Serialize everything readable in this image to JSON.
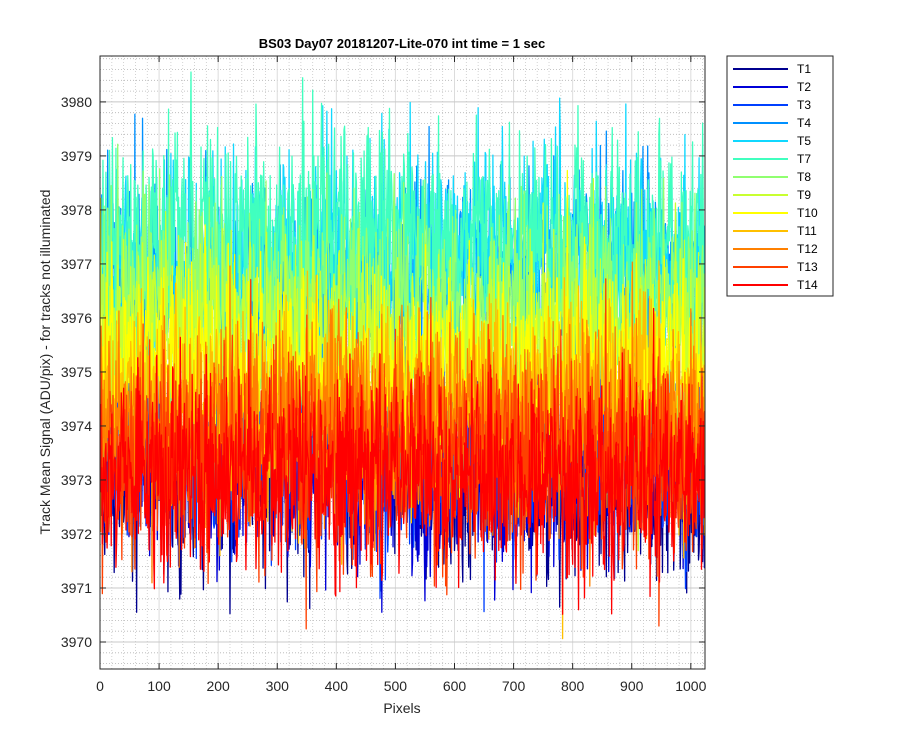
{
  "chart_data": {
    "type": "line",
    "title": "BS03 Day07 20181207-Lite-070 int time = 1 sec",
    "xlabel": "Pixels",
    "ylabel": "Track Mean Signal (ADU/pix) - for tracks not illuminated",
    "xlim": [
      0,
      1024
    ],
    "ylim": [
      3969.5,
      3980.85
    ],
    "x_ticks": [
      0,
      100,
      200,
      300,
      400,
      500,
      600,
      700,
      800,
      900,
      1000
    ],
    "y_ticks": [
      3970,
      3971,
      3972,
      3973,
      3974,
      3975,
      3976,
      3977,
      3978,
      3979,
      3980
    ],
    "grid": true,
    "legend_position": "outside-right",
    "series": [
      {
        "name": "T1",
        "color": "#00008f",
        "mean": 3973.0,
        "noise": 0.85
      },
      {
        "name": "T2",
        "color": "#0000d8",
        "mean": 3973.2,
        "noise": 0.85
      },
      {
        "name": "T3",
        "color": "#0040ff",
        "mean": 3973.5,
        "noise": 0.9
      },
      {
        "name": "T4",
        "color": "#0090ff",
        "mean": 3976.6,
        "noise": 1.0
      },
      {
        "name": "T5",
        "color": "#10d8ff",
        "mean": 3977.0,
        "noise": 1.0
      },
      {
        "name": "T7",
        "color": "#40ffbf",
        "mean": 3977.5,
        "noise": 1.0
      },
      {
        "name": "T8",
        "color": "#90ff70",
        "mean": 3976.2,
        "noise": 0.95
      },
      {
        "name": "T9",
        "color": "#c8ff30",
        "mean": 3975.5,
        "noise": 0.95
      },
      {
        "name": "T10",
        "color": "#ffff00",
        "mean": 3975.0,
        "noise": 0.95
      },
      {
        "name": "T11",
        "color": "#ffc000",
        "mean": 3974.4,
        "noise": 0.95
      },
      {
        "name": "T12",
        "color": "#ff8000",
        "mean": 3974.0,
        "noise": 0.95
      },
      {
        "name": "T13",
        "color": "#ff4000",
        "mean": 3973.4,
        "noise": 0.95
      },
      {
        "name": "T14",
        "color": "#ff0000",
        "mean": 3973.1,
        "noise": 0.95
      }
    ],
    "n_points": 1024
  }
}
